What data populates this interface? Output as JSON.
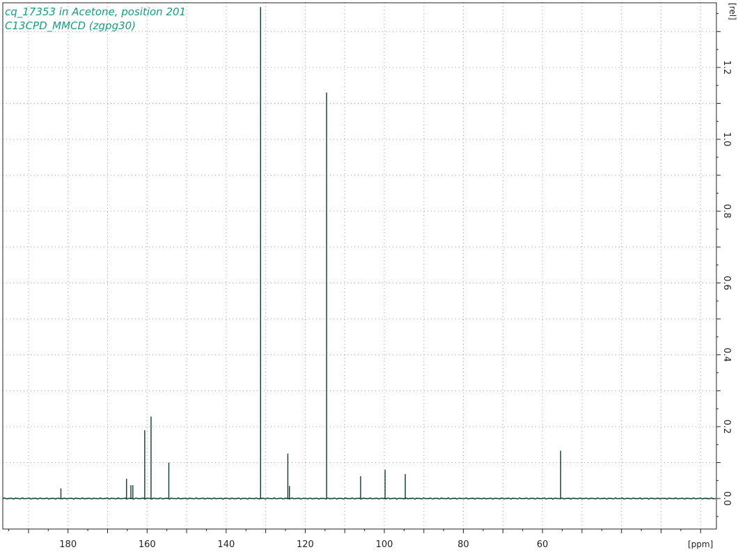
{
  "header": {
    "line1": "cq_17353 in Acetone, position 201",
    "line2": "C13CPD_MMCD (zgpg30)"
  },
  "colors": {
    "header_text": "#1a9a82",
    "trace": "#0d3b30",
    "grid": "#9aa0a0"
  },
  "chart_data": {
    "type": "line",
    "title": "",
    "xlabel": "[ppm]",
    "ylabel": "[rel]",
    "xlim": [
      196.5,
      16.0
    ],
    "ylim": [
      -0.085,
      1.38
    ],
    "x_reversed": true,
    "grid": true,
    "x_ticks": [
      180,
      160,
      140,
      120,
      100,
      80,
      60
    ],
    "y_ticks": [
      0.0,
      0.2,
      0.4,
      0.6,
      0.8,
      1.0,
      1.2
    ],
    "x_tick_labels": [
      "180",
      "160",
      "140",
      "120",
      "100",
      "80",
      "60"
    ],
    "y_tick_labels": [
      "0.0",
      "0.2",
      "0.4",
      "0.6",
      "0.8",
      "1.0",
      "1.2"
    ],
    "series": [
      {
        "peaks": [
          {
            "x": 181.8,
            "y": 0.028
          },
          {
            "x": 165.2,
            "y": 0.055
          },
          {
            "x": 164.1,
            "y": 0.037
          },
          {
            "x": 163.6,
            "y": 0.037
          },
          {
            "x": 160.6,
            "y": 0.19
          },
          {
            "x": 159.0,
            "y": 0.228
          },
          {
            "x": 154.5,
            "y": 0.1
          },
          {
            "x": 131.3,
            "y": 1.368
          },
          {
            "x": 124.4,
            "y": 0.125
          },
          {
            "x": 124.0,
            "y": 0.035
          },
          {
            "x": 114.6,
            "y": 1.13
          },
          {
            "x": 106.0,
            "y": 0.062
          },
          {
            "x": 99.8,
            "y": 0.08
          },
          {
            "x": 94.7,
            "y": 0.068
          },
          {
            "x": 55.4,
            "y": 0.133
          }
        ]
      }
    ]
  }
}
